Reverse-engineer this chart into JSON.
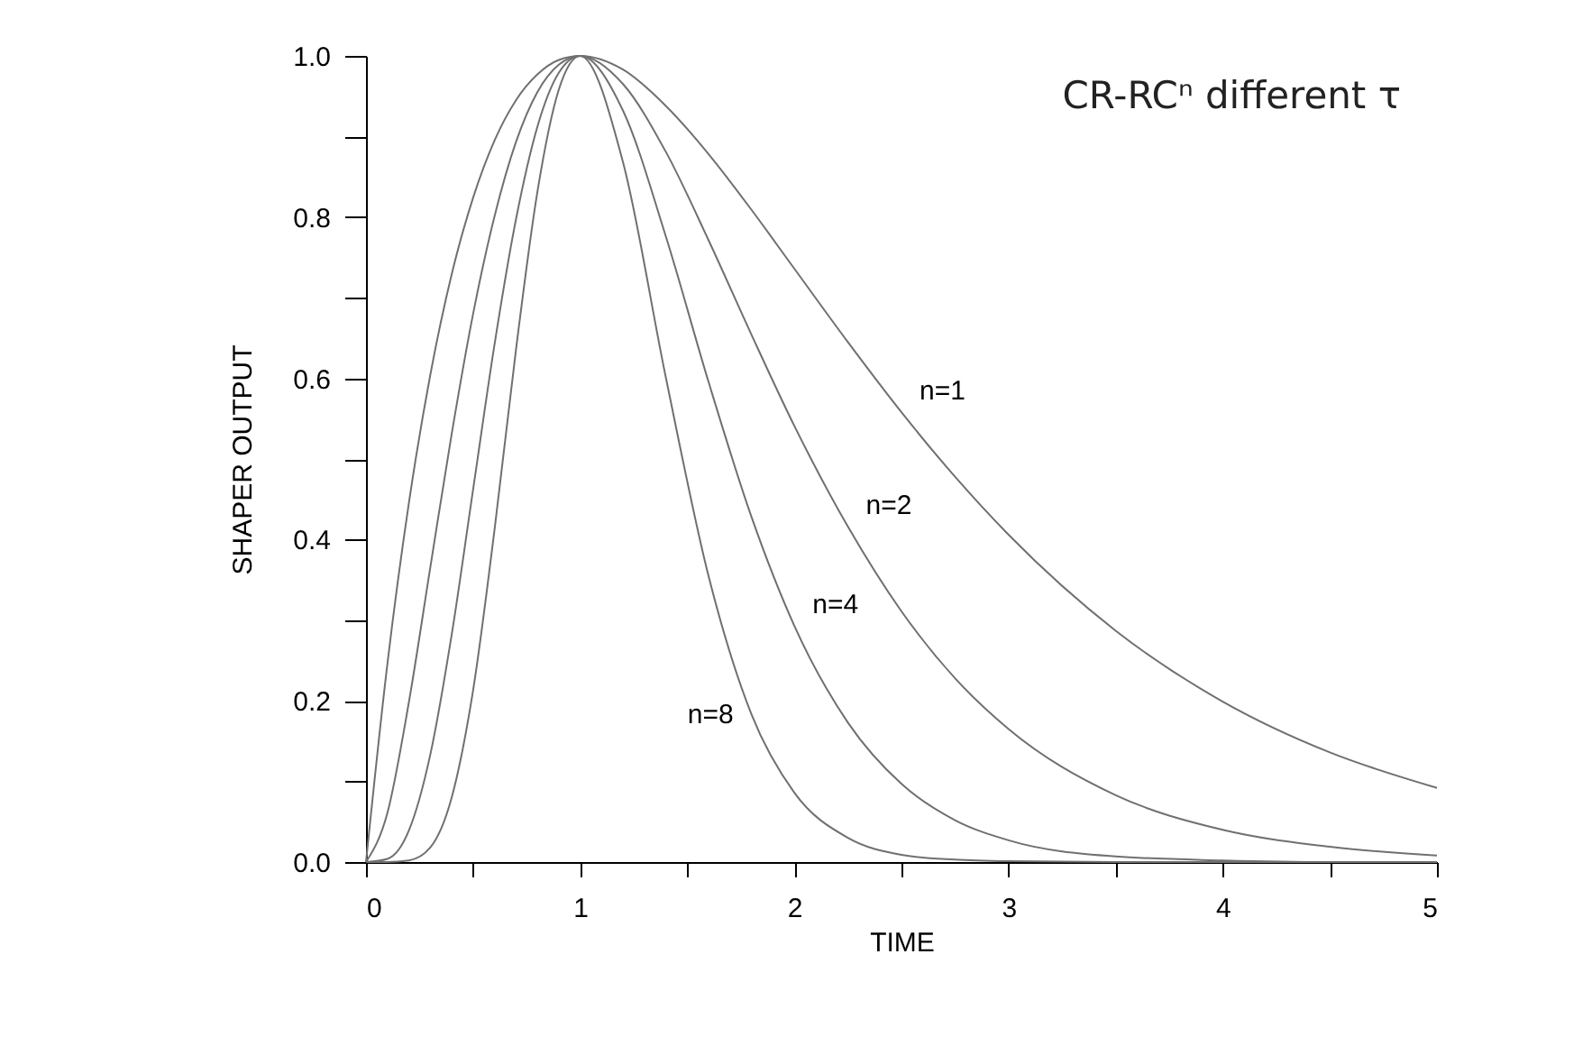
{
  "chart_data": {
    "type": "line",
    "title": "CR-RCⁿ  different τ",
    "xlabel": "TIME",
    "ylabel": "SHAPER OUTPUT",
    "x": [
      0,
      0.1,
      0.2,
      0.3,
      0.4,
      0.5,
      0.6,
      0.7,
      0.8,
      0.9,
      1,
      1.2,
      1.4,
      1.6,
      1.8,
      2,
      2.25,
      2.5,
      2.75,
      3,
      3.5,
      4,
      4.5,
      5
    ],
    "series": [
      {
        "name": "n=1",
        "color": "#707070",
        "values": [
          0,
          0.246,
          0.445,
          0.604,
          0.729,
          0.824,
          0.895,
          0.945,
          0.977,
          0.995,
          1,
          0.983,
          0.938,
          0.878,
          0.809,
          0.736,
          0.645,
          0.558,
          0.478,
          0.406,
          0.287,
          0.199,
          0.136,
          0.092
        ]
      },
      {
        "name": "n=2",
        "color": "#707070",
        "values": [
          0,
          0.061,
          0.198,
          0.365,
          0.531,
          0.68,
          0.801,
          0.893,
          0.955,
          0.989,
          1,
          0.965,
          0.881,
          0.771,
          0.654,
          0.541,
          0.416,
          0.311,
          0.228,
          0.165,
          0.083,
          0.04,
          0.019,
          0.008
        ]
      },
      {
        "name": "n=4",
        "color": "#707070",
        "values": [
          0,
          0.004,
          0.039,
          0.133,
          0.282,
          0.462,
          0.642,
          0.797,
          0.912,
          0.979,
          1,
          0.932,
          0.776,
          0.595,
          0.428,
          0.293,
          0.173,
          0.097,
          0.052,
          0.027,
          0.007,
          0.002,
          0,
          0
        ]
      },
      {
        "name": "n=8",
        "color": "#707070",
        "values": [
          0,
          0,
          0.002,
          0.018,
          0.08,
          0.213,
          0.412,
          0.635,
          0.831,
          0.958,
          1,
          0.868,
          0.601,
          0.354,
          0.183,
          0.086,
          0.03,
          0.009,
          0.003,
          0.001,
          0,
          0,
          0,
          0
        ]
      }
    ],
    "xlim": [
      0,
      5
    ],
    "xticks": [
      0,
      {
        "value": 0.5,
        "label": null
      },
      1,
      {
        "value": 1.5,
        "label": null
      },
      2,
      {
        "value": 2.5,
        "label": null
      },
      3,
      {
        "value": 3.5,
        "label": null
      },
      4,
      {
        "value": 4.5,
        "label": null
      },
      5
    ],
    "ylim": [
      0,
      1
    ],
    "yticks": [
      {
        "value": 0,
        "label": "0.0"
      },
      {
        "value": 0.1,
        "label": null
      },
      {
        "value": 0.2,
        "label": "0.2"
      },
      {
        "value": 0.3,
        "label": null
      },
      {
        "value": 0.4,
        "label": "0.4"
      },
      {
        "value": 0.5,
        "label": null
      },
      {
        "value": 0.6,
        "label": "0.6"
      },
      {
        "value": 0.7,
        "label": null
      },
      {
        "value": 0.8,
        "label": "0.8"
      },
      {
        "value": 0.9,
        "label": null
      },
      {
        "value": 1,
        "label": "1.0"
      }
    ],
    "grid": false
  }
}
